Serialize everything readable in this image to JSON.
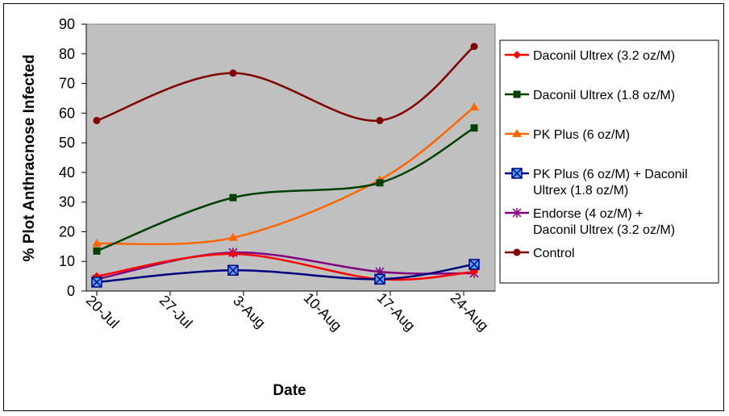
{
  "chart_data": {
    "type": "line",
    "title": "",
    "xlabel": "Date",
    "ylabel": "% Plot Anthracnose Infected",
    "x_type": "date",
    "x_ticks": [
      {
        "date": "2000-07-20",
        "label": "20-Jul"
      },
      {
        "date": "2000-07-27",
        "label": "27-Jul"
      },
      {
        "date": "2000-08-03",
        "label": "3-Aug"
      },
      {
        "date": "2000-08-10",
        "label": "10-Aug"
      },
      {
        "date": "2000-08-17",
        "label": "17-Aug"
      },
      {
        "date": "2000-08-24",
        "label": "24-Aug"
      }
    ],
    "xlim": [
      "2000-07-19",
      "2000-08-27"
    ],
    "ylim": [
      0,
      90
    ],
    "y_ticks": [
      "0",
      "10",
      "20",
      "30",
      "40",
      "50",
      "60",
      "70",
      "80",
      "90"
    ],
    "grid": false,
    "plot_background": "#c0c0c0",
    "legend_position": "right",
    "x": [
      "2000-07-20",
      "2000-08-02",
      "2000-08-16",
      "2000-08-25"
    ],
    "series": [
      {
        "name": "Daconil Ultrex (3.2 oz/M)",
        "color": "#ff0000",
        "marker": "diamond",
        "values": [
          5,
          12.5,
          4,
          6.5
        ]
      },
      {
        "name": "Daconil Ultrex (1.8 oz/M)",
        "color": "#004000",
        "marker": "square",
        "values": [
          13.5,
          31.5,
          36.5,
          55
        ]
      },
      {
        "name": "PK Plus (6 oz/M)",
        "color": "#ff6600",
        "marker": "triangle",
        "values": [
          16,
          18,
          37.5,
          62
        ]
      },
      {
        "name": "PK Plus (6 oz/M) + Daconil Ultrex (1.8 oz/M)",
        "color": "#000080",
        "marker": "boxed-x",
        "values": [
          3,
          7,
          4,
          9
        ]
      },
      {
        "name": "Endorse (4 oz/M) + Daconil Ultrex (3.2 oz/M)",
        "color": "#800080",
        "marker": "asterisk",
        "values": [
          4,
          13,
          6.5,
          6
        ]
      },
      {
        "name": "Control",
        "color": "#800000",
        "marker": "circle",
        "values": [
          57.5,
          73.5,
          57.5,
          82.5
        ]
      }
    ]
  }
}
